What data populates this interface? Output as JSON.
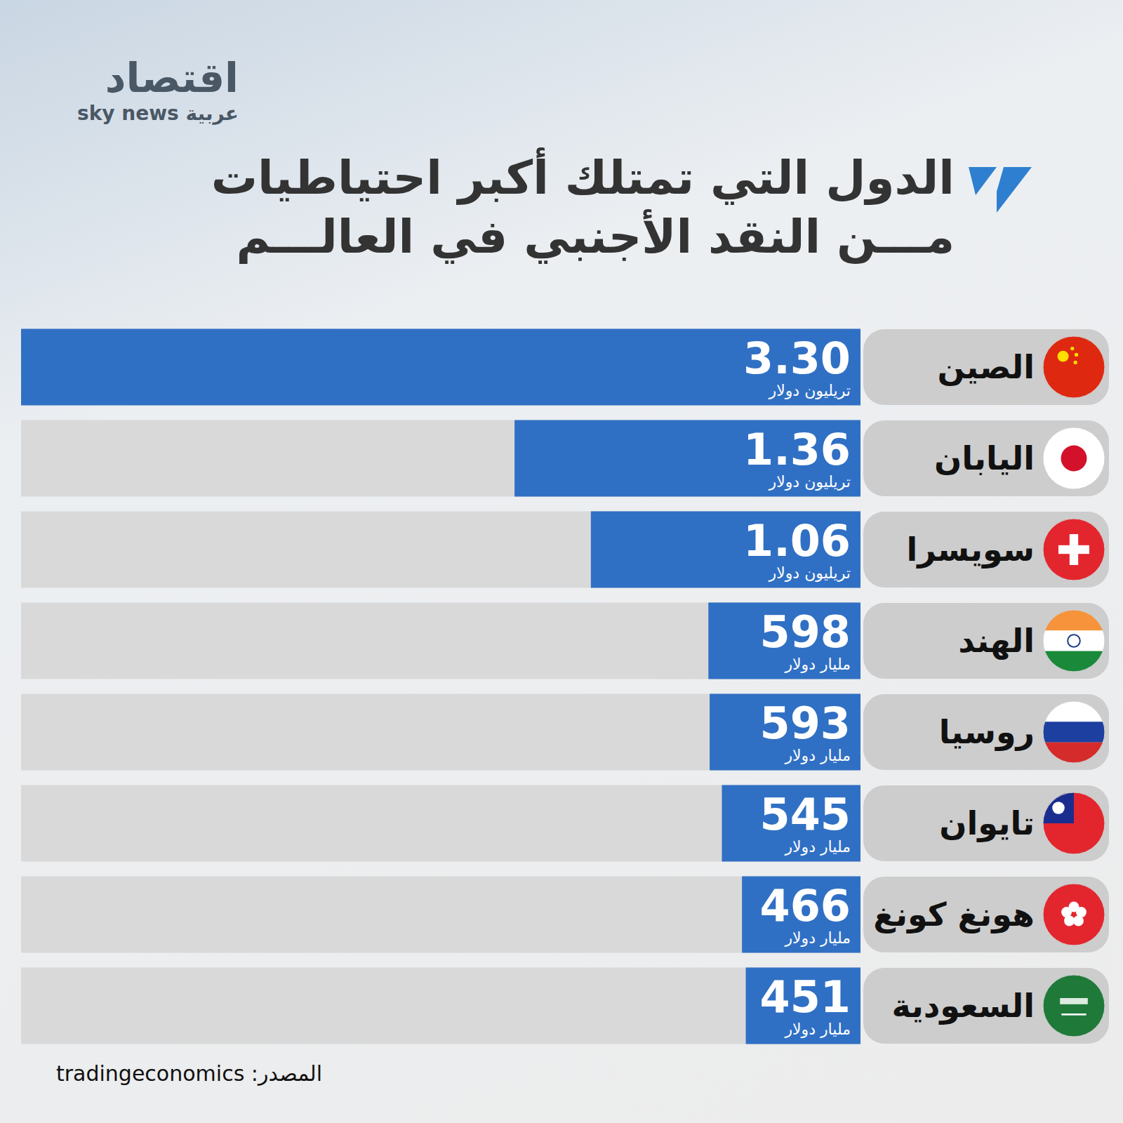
{
  "chart_data": {
    "type": "bar",
    "orientation": "horizontal",
    "title": "الدول التي تمتلك أكبر احتياطيات مـــن النقد الأجنبي في العالـــم",
    "categories": [
      "الصين",
      "اليابان",
      "سويسرا",
      "الهند",
      "روسيا",
      "تايوان",
      "هونغ كونغ",
      "السعودية"
    ],
    "values": [
      3300,
      1360,
      1060,
      598,
      593,
      545,
      466,
      451
    ],
    "value_labels": [
      "3.30 تريليون دولار",
      "1.36 تريليون دولار",
      "1.06 تريليون دولار",
      "598 مليار دولار",
      "593 مليار دولار",
      "545 مليار دولار",
      "466 مليار دولار",
      "451 مليار دولار"
    ],
    "color": "#3070c4",
    "xlim": [
      0,
      3300
    ],
    "data_labels": true,
    "tick_labels": "y",
    "grid": false,
    "source": "المصدر: tradingeconomics",
    "annotations": [
      "اقتصاد",
      "sky news عربية"
    ]
  }
}
